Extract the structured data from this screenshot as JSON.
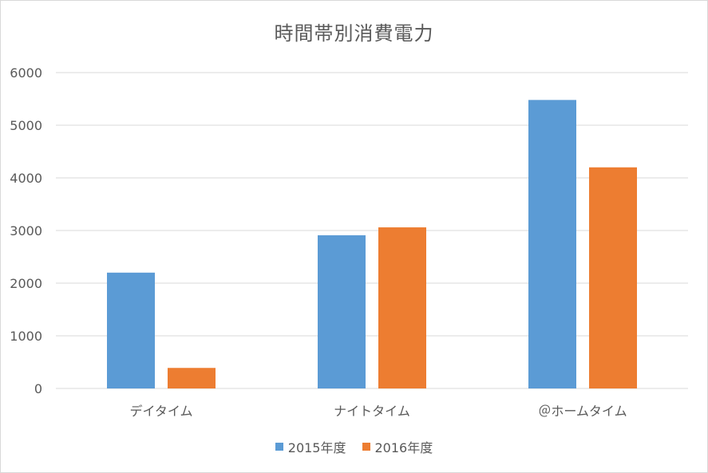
{
  "colors": {
    "series_2015": "#5b9bd5",
    "series_2016": "#ed7d31",
    "grid": "#d9d9d9",
    "text": "#595959"
  },
  "chart_data": {
    "type": "bar",
    "title": "時間帯別消費電力",
    "xlabel": "",
    "ylabel": "",
    "categories": [
      "デイタイム",
      "ナイトタイム",
      "＠ホームタイム"
    ],
    "series": [
      {
        "name": "2015年度",
        "values": [
          2200,
          2910,
          5480
        ]
      },
      {
        "name": "2016年度",
        "values": [
          390,
          3060,
          4200
        ]
      }
    ],
    "ylim": [
      0,
      6000
    ],
    "yticks": [
      0,
      1000,
      2000,
      3000,
      4000,
      5000,
      6000
    ],
    "grid": true,
    "legend": "bottom"
  }
}
